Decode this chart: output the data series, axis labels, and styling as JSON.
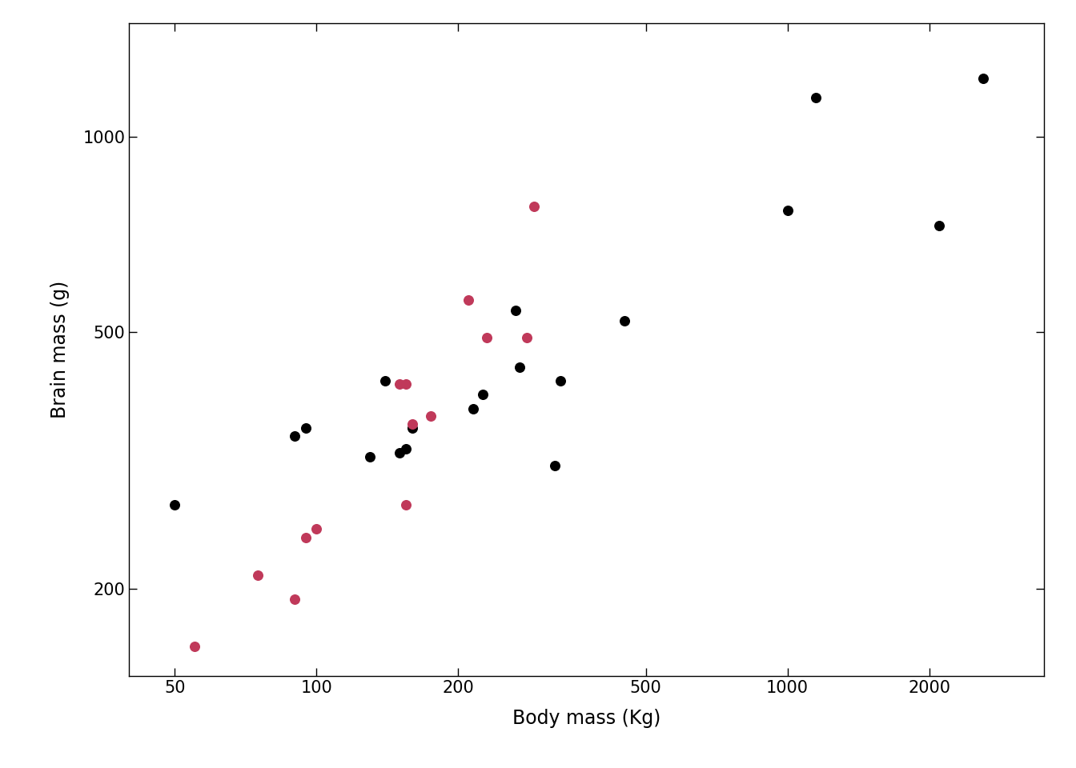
{
  "title": "",
  "xlabel": "Body mass (Kg)",
  "ylabel": "Brain mass (g)",
  "points": [
    {
      "body": 55,
      "brain": 163,
      "color": "pink"
    },
    {
      "body": 75,
      "brain": 210,
      "color": "pink"
    },
    {
      "body": 90,
      "brain": 193,
      "color": "pink"
    },
    {
      "body": 95,
      "brain": 240,
      "color": "pink"
    },
    {
      "body": 100,
      "brain": 248,
      "color": "pink"
    },
    {
      "body": 50,
      "brain": 270,
      "color": "black"
    },
    {
      "body": 90,
      "brain": 345,
      "color": "black"
    },
    {
      "body": 95,
      "brain": 355,
      "color": "black"
    },
    {
      "body": 130,
      "brain": 320,
      "color": "black"
    },
    {
      "body": 140,
      "brain": 420,
      "color": "black"
    },
    {
      "body": 150,
      "brain": 415,
      "color": "pink"
    },
    {
      "body": 155,
      "brain": 415,
      "color": "pink"
    },
    {
      "body": 150,
      "brain": 325,
      "color": "black"
    },
    {
      "body": 155,
      "brain": 330,
      "color": "black"
    },
    {
      "body": 160,
      "brain": 355,
      "color": "black"
    },
    {
      "body": 155,
      "brain": 270,
      "color": "pink"
    },
    {
      "body": 160,
      "brain": 360,
      "color": "pink"
    },
    {
      "body": 175,
      "brain": 370,
      "color": "pink"
    },
    {
      "body": 210,
      "brain": 560,
      "color": "pink"
    },
    {
      "body": 215,
      "brain": 380,
      "color": "black"
    },
    {
      "body": 225,
      "brain": 400,
      "color": "black"
    },
    {
      "body": 230,
      "brain": 490,
      "color": "pink"
    },
    {
      "body": 265,
      "brain": 540,
      "color": "black"
    },
    {
      "body": 270,
      "brain": 440,
      "color": "black"
    },
    {
      "body": 280,
      "brain": 490,
      "color": "pink"
    },
    {
      "body": 290,
      "brain": 780,
      "color": "pink"
    },
    {
      "body": 320,
      "brain": 310,
      "color": "black"
    },
    {
      "body": 450,
      "brain": 520,
      "color": "black"
    },
    {
      "body": 1000,
      "brain": 770,
      "color": "black"
    },
    {
      "body": 1150,
      "brain": 1150,
      "color": "black"
    },
    {
      "body": 2100,
      "brain": 730,
      "color": "black"
    },
    {
      "body": 2600,
      "brain": 1230,
      "color": "black"
    },
    {
      "body": 330,
      "brain": 420,
      "color": "black"
    }
  ],
  "black_color": "#000000",
  "pink_color": "#c0395a",
  "xlim_log": [
    1.602,
    3.544
  ],
  "ylim_log": [
    2.167,
    3.176
  ],
  "xticks": [
    50,
    100,
    200,
    500,
    1000,
    2000
  ],
  "yticks": [
    200,
    500,
    1000
  ],
  "marker_size": 70,
  "background_color": "#ffffff",
  "xlabel_fontsize": 17,
  "ylabel_fontsize": 17,
  "tick_labelsize": 15
}
